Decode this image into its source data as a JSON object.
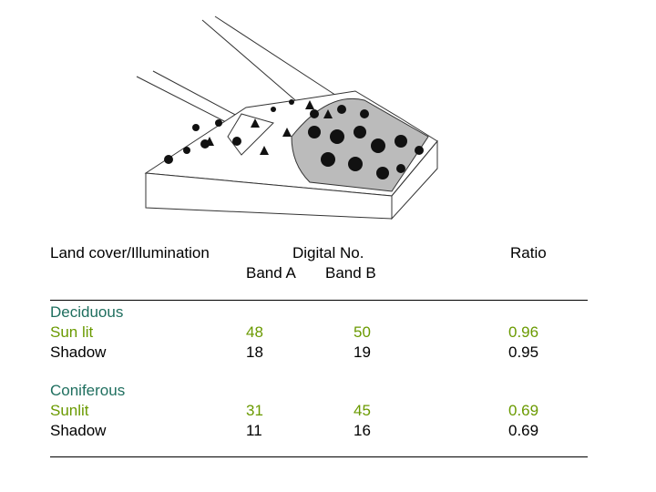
{
  "table": {
    "header": {
      "column_1": "Land cover/Illumination",
      "group": "Digital No.",
      "band_a": "Band A",
      "band_b": "Band B",
      "ratio": "Ratio"
    },
    "groups": [
      {
        "name": "Deciduous",
        "rows": [
          {
            "label": "Sun lit",
            "band_a": 48,
            "band_b": 50,
            "ratio": 0.96
          },
          {
            "label": "Shadow",
            "band_a": 18,
            "band_b": 19,
            "ratio": 0.95
          }
        ]
      },
      {
        "name": "Coniferous",
        "rows": [
          {
            "label": "Sunlit",
            "band_a": 31,
            "band_b": 45,
            "ratio": 0.69
          },
          {
            "label": "Shadow",
            "band_a": 11,
            "band_b": 16,
            "ratio": 0.69
          }
        ]
      }
    ]
  }
}
